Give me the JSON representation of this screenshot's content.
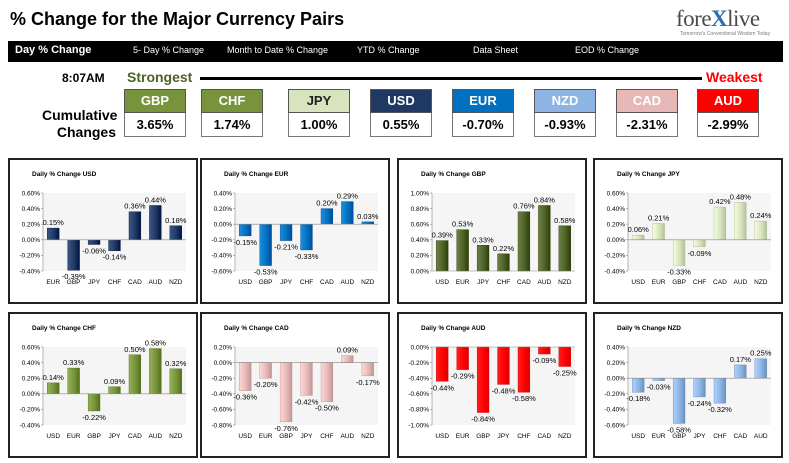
{
  "header": {
    "title": "% Change for the Major Currency Pairs",
    "logo_a": "fore",
    "logo_x": "X",
    "logo_b": "live",
    "logo_tagline": "Tomorrow's Conventional Wisdom Today"
  },
  "nav": {
    "items": [
      "Day % Change",
      "5- Day % Change",
      "Month to Date % Change",
      "YTD % Change",
      "Data Sheet",
      "EOD % Change"
    ]
  },
  "ranking": {
    "time": "8:07AM",
    "strongest": "Strongest",
    "weakest": "Weakest",
    "cumulative_label_1": "Cumulative",
    "cumulative_label_2": "Changes",
    "currencies": [
      {
        "code": "GBP",
        "value": "3.65%",
        "color": "#77933c"
      },
      {
        "code": "CHF",
        "value": "1.74%",
        "color": "#77933c"
      },
      {
        "code": "JPY",
        "value": "1.00%",
        "color": "#d7e4bd"
      },
      {
        "code": "USD",
        "value": "0.55%",
        "color": "#1f3864"
      },
      {
        "code": "EUR",
        "value": "-0.70%",
        "color": "#0070c0"
      },
      {
        "code": "NZD",
        "value": "-0.93%",
        "color": "#8eb4e3"
      },
      {
        "code": "CAD",
        "value": "-2.31%",
        "color": "#e6b9b8"
      },
      {
        "code": "AUD",
        "value": "-2.99%",
        "color": "#ff0000"
      }
    ]
  },
  "chart_data": [
    {
      "type": "bar",
      "title": "Daily % Change USD",
      "categories": [
        "EUR",
        "GBP",
        "JPY",
        "CHF",
        "CAD",
        "AUD",
        "NZD"
      ],
      "values": [
        0.15,
        -0.39,
        -0.06,
        -0.14,
        0.36,
        0.44,
        0.18
      ],
      "labels": [
        "0.15%",
        "-0.39%",
        "-0.06%",
        "-0.14%",
        "0.36%",
        "0.44%",
        "0.18%"
      ],
      "ylim": [
        -0.4,
        0.6
      ],
      "yticks": [
        -0.4,
        -0.2,
        0,
        0.2,
        0.4,
        0.6
      ],
      "ytick_labels": [
        "-0.40%",
        "-0.20%",
        "0.00%",
        "0.20%",
        "0.40%",
        "0.60%"
      ],
      "colors": [
        "#1f3864",
        "#1f3864",
        "#1f3864",
        "#1f3864",
        "#1f3864",
        "#1f3864",
        "#1f3864"
      ]
    },
    {
      "type": "bar",
      "title": "Daily % Change EUR",
      "categories": [
        "USD",
        "GBP",
        "JPY",
        "CHF",
        "CAD",
        "AUD",
        "NZD"
      ],
      "values": [
        -0.15,
        -0.53,
        -0.21,
        -0.33,
        0.2,
        0.29,
        0.03
      ],
      "labels": [
        "-0.15%",
        "-0.53%",
        "-0.21%",
        "-0.33%",
        "0.20%",
        "0.29%",
        "0.03%"
      ],
      "ylim": [
        -0.6,
        0.4
      ],
      "yticks": [
        -0.6,
        -0.4,
        -0.2,
        0,
        0.2,
        0.4
      ],
      "ytick_labels": [
        "-0.60%",
        "-0.40%",
        "-0.20%",
        "0.00%",
        "0.20%",
        "0.40%"
      ],
      "colors": [
        "#0070c0",
        "#0070c0",
        "#0070c0",
        "#0070c0",
        "#0070c0",
        "#0070c0",
        "#0070c0"
      ]
    },
    {
      "type": "bar",
      "title": "Daily % Change GBP",
      "categories": [
        "USD",
        "EUR",
        "JPY",
        "CHF",
        "CAD",
        "AUD",
        "NZD"
      ],
      "values": [
        0.39,
        0.53,
        0.33,
        0.22,
        0.76,
        0.84,
        0.58
      ],
      "labels": [
        "0.39%",
        "0.53%",
        "0.33%",
        "0.22%",
        "0.76%",
        "0.84%",
        "0.58%"
      ],
      "ylim": [
        0,
        1
      ],
      "yticks": [
        0,
        0.2,
        0.4,
        0.6,
        0.8,
        1
      ],
      "ytick_labels": [
        "0.00%",
        "0.20%",
        "0.40%",
        "0.60%",
        "0.80%",
        "1.00%"
      ],
      "colors": [
        "#4f6228",
        "#4f6228",
        "#4f6228",
        "#4f6228",
        "#4f6228",
        "#4f6228",
        "#4f6228"
      ]
    },
    {
      "type": "bar",
      "title": "Daily % Change JPY",
      "categories": [
        "USD",
        "EUR",
        "GBP",
        "CHF",
        "CAD",
        "AUD",
        "NZD"
      ],
      "values": [
        0.06,
        0.21,
        -0.33,
        -0.09,
        0.42,
        0.48,
        0.24
      ],
      "labels": [
        "0.06%",
        "0.21%",
        "-0.33%",
        "-0.09%",
        "0.42%",
        "0.48%",
        "0.24%"
      ],
      "ylim": [
        -0.4,
        0.6
      ],
      "yticks": [
        -0.4,
        -0.2,
        0,
        0.2,
        0.4,
        0.6
      ],
      "ytick_labels": [
        "-0.40%",
        "-0.20%",
        "0.00%",
        "0.20%",
        "0.40%",
        "0.60%"
      ],
      "colors": [
        "#d7e4bd",
        "#d7e4bd",
        "#d7e4bd",
        "#d7e4bd",
        "#d7e4bd",
        "#d7e4bd",
        "#d7e4bd"
      ]
    },
    {
      "type": "bar",
      "title": "Daily % Change CHF",
      "categories": [
        "USD",
        "EUR",
        "GBP",
        "JPY",
        "CAD",
        "AUD",
        "NZD"
      ],
      "values": [
        0.14,
        0.33,
        -0.22,
        0.09,
        0.5,
        0.58,
        0.32
      ],
      "labels": [
        "0.14%",
        "0.33%",
        "-0.22%",
        "0.09%",
        "0.50%",
        "0.58%",
        "0.32%"
      ],
      "ylim": [
        -0.4,
        0.6
      ],
      "yticks": [
        -0.4,
        -0.2,
        0,
        0.2,
        0.4,
        0.6
      ],
      "ytick_labels": [
        "-0.40%",
        "-0.20%",
        "0.00%",
        "0.20%",
        "0.40%",
        "0.60%"
      ],
      "colors": [
        "#77933c",
        "#77933c",
        "#77933c",
        "#77933c",
        "#77933c",
        "#77933c",
        "#77933c"
      ]
    },
    {
      "type": "bar",
      "title": "Daily % Change CAD",
      "categories": [
        "USD",
        "EUR",
        "GBP",
        "JPY",
        "CHF",
        "AUD",
        "NZD"
      ],
      "values": [
        -0.36,
        -0.2,
        -0.76,
        -0.42,
        -0.5,
        0.09,
        -0.17
      ],
      "labels": [
        "-0.36%",
        "-0.20%",
        "-0.76%",
        "-0.42%",
        "-0.50%",
        "0.09%",
        "-0.17%"
      ],
      "ylim": [
        -0.8,
        0.2
      ],
      "yticks": [
        -0.8,
        -0.6,
        -0.4,
        -0.2,
        0,
        0.2
      ],
      "ytick_labels": [
        "-0.80%",
        "-0.60%",
        "-0.40%",
        "-0.20%",
        "0.00%",
        "0.20%"
      ],
      "colors": [
        "#e6b9b8",
        "#e6b9b8",
        "#e6b9b8",
        "#e6b9b8",
        "#e6b9b8",
        "#e6b9b8",
        "#e6b9b8"
      ]
    },
    {
      "type": "bar",
      "title": "Daily % Change AUD",
      "categories": [
        "USD",
        "EUR",
        "GBP",
        "JPY",
        "CHF",
        "CAD",
        "NZD"
      ],
      "values": [
        -0.44,
        -0.29,
        -0.84,
        -0.48,
        -0.58,
        -0.09,
        -0.25
      ],
      "labels": [
        "-0.44%",
        "-0.29%",
        "-0.84%",
        "-0.48%",
        "-0.58%",
        "-0.09%",
        "-0.25%"
      ],
      "ylim": [
        -1,
        0
      ],
      "yticks": [
        -1,
        -0.8,
        -0.6,
        -0.4,
        -0.2,
        0
      ],
      "ytick_labels": [
        "-1.00%",
        "-0.80%",
        "-0.60%",
        "-0.40%",
        "-0.20%",
        "0.00%"
      ],
      "colors": [
        "#ff0000",
        "#ff0000",
        "#ff0000",
        "#ff0000",
        "#ff0000",
        "#ff0000",
        "#ff0000"
      ]
    },
    {
      "type": "bar",
      "title": "Daily % Change NZD",
      "categories": [
        "USD",
        "EUR",
        "GBP",
        "JPY",
        "CHF",
        "CAD",
        "AUD"
      ],
      "values": [
        -0.18,
        -0.03,
        -0.58,
        -0.24,
        -0.32,
        0.17,
        0.25
      ],
      "labels": [
        "-0.18%",
        "-0.03%",
        "-0.58%",
        "-0.24%",
        "-0.32%",
        "0.17%",
        "0.25%"
      ],
      "ylim": [
        -0.6,
        0.4
      ],
      "yticks": [
        -0.6,
        -0.4,
        -0.2,
        0,
        0.2,
        0.4
      ],
      "ytick_labels": [
        "-0.60%",
        "-0.40%",
        "-0.20%",
        "0.00%",
        "0.20%",
        "0.40%"
      ],
      "colors": [
        "#8eb4e3",
        "#8eb4e3",
        "#8eb4e3",
        "#8eb4e3",
        "#8eb4e3",
        "#8eb4e3",
        "#8eb4e3"
      ]
    }
  ]
}
